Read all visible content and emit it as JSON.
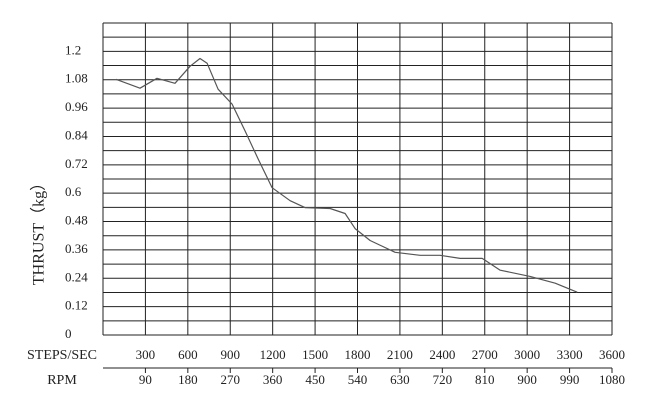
{
  "chart_data": {
    "type": "line",
    "y_label": "THRUST（kg）",
    "x_label": "STEPS/SEC",
    "x2_label": "RPM",
    "xlim": [
      0,
      3600
    ],
    "xticks": [
      300,
      600,
      900,
      1200,
      1500,
      1800,
      2100,
      2400,
      2700,
      3000,
      3300,
      3600
    ],
    "x2lim": [
      0,
      1080
    ],
    "x2ticks": [
      90,
      180,
      270,
      360,
      450,
      540,
      630,
      720,
      810,
      900,
      990,
      1080
    ],
    "ylim": [
      0,
      1.32
    ],
    "yticks": [
      0,
      0.12,
      0.24,
      0.36,
      0.48,
      0.6,
      0.72,
      0.84,
      0.96,
      1.08,
      1.2
    ],
    "y_minor_grid": [
      0.06,
      0.18,
      0.3,
      0.42,
      0.54,
      0.66,
      0.78,
      0.9,
      1.02,
      1.14,
      1.26,
      1.32
    ],
    "grid": true,
    "series": [
      {
        "color": "#555555",
        "x": [
          92,
          262,
          382,
          509,
          615,
          686,
          736,
          814,
          913,
          1005,
          1097,
          1196,
          1323,
          1429,
          1606,
          1712,
          1783,
          1889,
          2066,
          2243,
          2384,
          2526,
          2682,
          2809,
          3021,
          3198,
          3354
        ],
        "values": [
          1.082,
          1.044,
          1.086,
          1.065,
          1.137,
          1.17,
          1.15,
          1.04,
          0.977,
          0.863,
          0.745,
          0.623,
          0.568,
          0.539,
          0.535,
          0.514,
          0.45,
          0.4,
          0.35,
          0.337,
          0.337,
          0.324,
          0.324,
          0.274,
          0.248,
          0.219,
          0.181
        ]
      }
    ]
  }
}
